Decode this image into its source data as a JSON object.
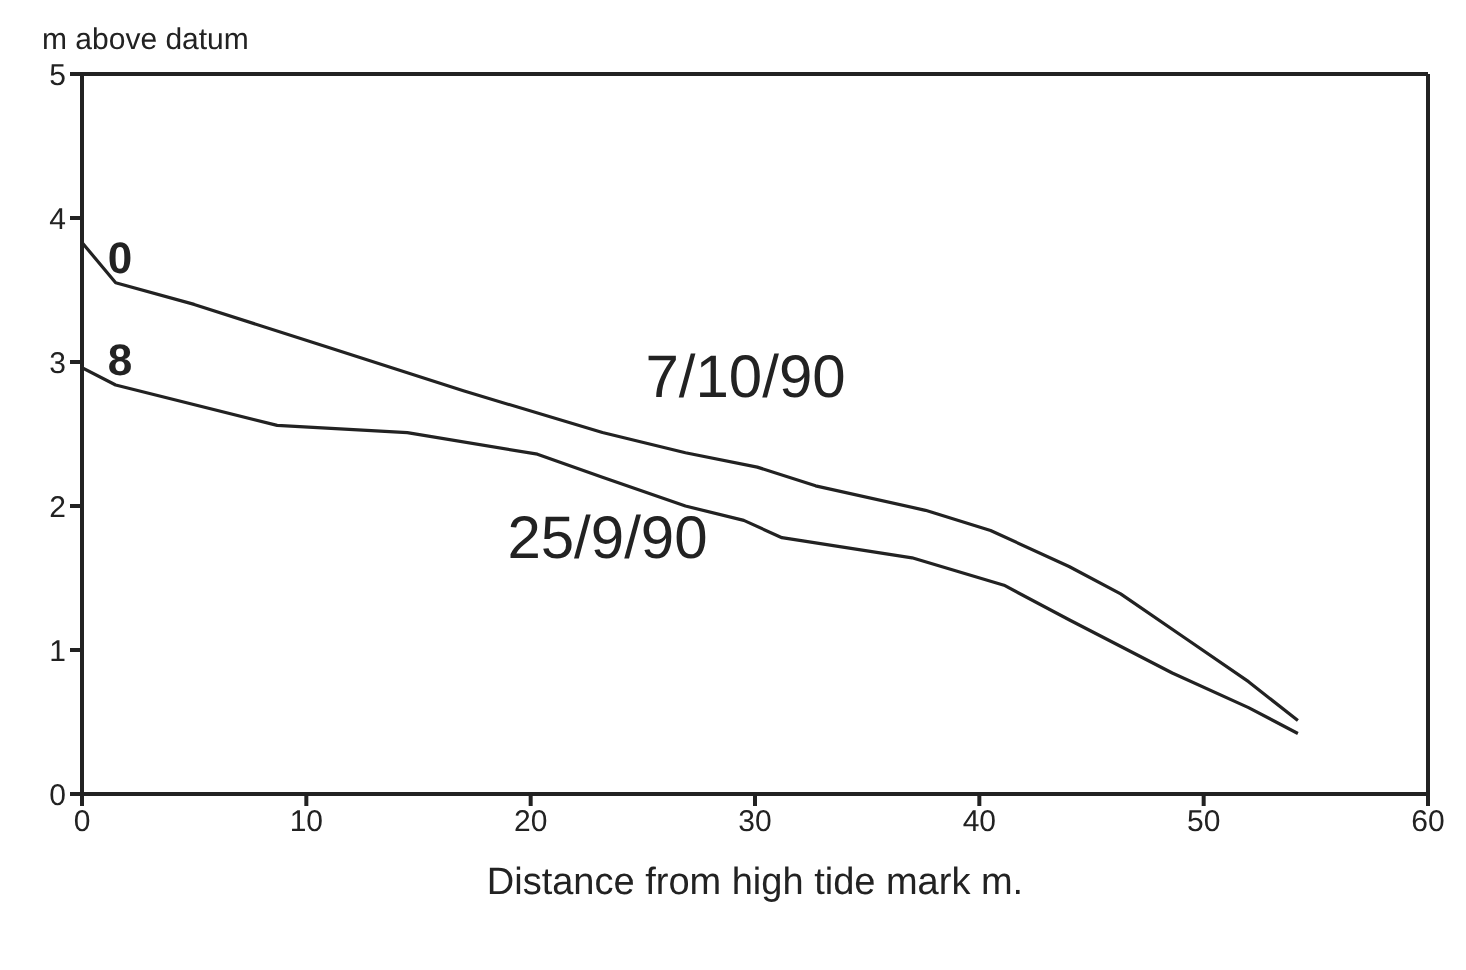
{
  "chart_data": {
    "type": "line",
    "xlabel": "Distance from high tide mark m.",
    "ylabel": "m above datum",
    "xlim": [
      0,
      60
    ],
    "xticks": [
      0,
      10,
      20,
      30,
      40,
      50,
      60
    ],
    "ylim": [
      0,
      5
    ],
    "yticks": [
      0,
      1,
      2,
      3,
      4,
      5
    ],
    "marker": "none",
    "line_style": "solid",
    "series": [
      {
        "name": "7/10/90",
        "color": "#222222",
        "x": [
          0,
          1.5,
          5,
          11,
          17,
          23.2,
          26.9,
          30.1,
          32.7,
          37.6,
          40.5,
          44,
          46.3,
          49.2,
          52,
          54.2
        ],
        "values": [
          3.83,
          3.55,
          3.4,
          3.1,
          2.8,
          2.51,
          2.37,
          2.27,
          2.14,
          1.97,
          1.83,
          1.58,
          1.39,
          1.08,
          0.78,
          0.51
        ]
      },
      {
        "name": "25/9/90",
        "color": "#222222",
        "x": [
          0,
          1.5,
          8.7,
          14.5,
          20.3,
          23.2,
          26.9,
          29.5,
          31.2,
          37,
          41.1,
          44,
          48.6,
          52,
          54.2
        ],
        "values": [
          2.96,
          2.84,
          2.56,
          2.51,
          2.36,
          2.2,
          2.0,
          1.9,
          1.78,
          1.64,
          1.45,
          1.21,
          0.84,
          0.6,
          0.42
        ]
      }
    ],
    "annotations": [
      {
        "text": "0",
        "x": 1.5,
        "y": 3.55
      },
      {
        "text": "8",
        "x": 1.5,
        "y": 2.84
      }
    ]
  }
}
